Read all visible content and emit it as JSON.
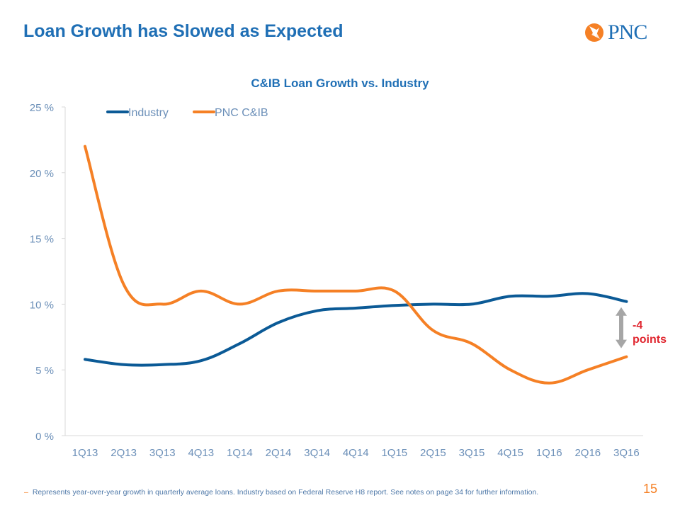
{
  "slide": {
    "title": "Loan Growth has Slowed as Expected",
    "logo_text": "PNC",
    "footnote_dash": "–",
    "footnote": "Represents year-over-year growth in quarterly average loans. Industry based on Federal Reserve H8 report. See notes on page 34 for further information.",
    "page_number": "15"
  },
  "colors": {
    "industry": "#0b5a96",
    "pnc": "#f58025",
    "title": "#1f6fb5",
    "axis_text": "#6b8fb8",
    "annotation": "#e0262f",
    "arrow": "#a6a6a6"
  },
  "annotation": {
    "line1": "-4",
    "line2": "points"
  },
  "chart_data": {
    "type": "line",
    "title": "C&IB Loan Growth vs. Industry",
    "xlabel": "",
    "ylabel": "",
    "ylim": [
      0,
      25
    ],
    "yticks": [
      0,
      5,
      10,
      15,
      20,
      25
    ],
    "ytick_labels": [
      "0 %",
      "5 %",
      "10 %",
      "15 %",
      "20 %",
      "25 %"
    ],
    "grid": false,
    "legend": "top-left",
    "categories": [
      "1Q13",
      "2Q13",
      "3Q13",
      "4Q13",
      "1Q14",
      "2Q14",
      "3Q14",
      "4Q14",
      "1Q15",
      "2Q15",
      "3Q15",
      "4Q15",
      "1Q16",
      "2Q16",
      "3Q16"
    ],
    "series": [
      {
        "name": "Industry",
        "values": [
          5.8,
          5.4,
          5.4,
          5.7,
          7.0,
          8.6,
          9.5,
          9.7,
          9.9,
          10.0,
          10.0,
          10.6,
          10.6,
          10.8,
          10.2
        ]
      },
      {
        "name": "PNC C&IB",
        "values": [
          22.0,
          11.5,
          10.0,
          11.0,
          10.0,
          11.0,
          11.0,
          11.0,
          11.0,
          8.0,
          7.0,
          5.0,
          4.0,
          5.0,
          6.0
        ]
      }
    ]
  }
}
